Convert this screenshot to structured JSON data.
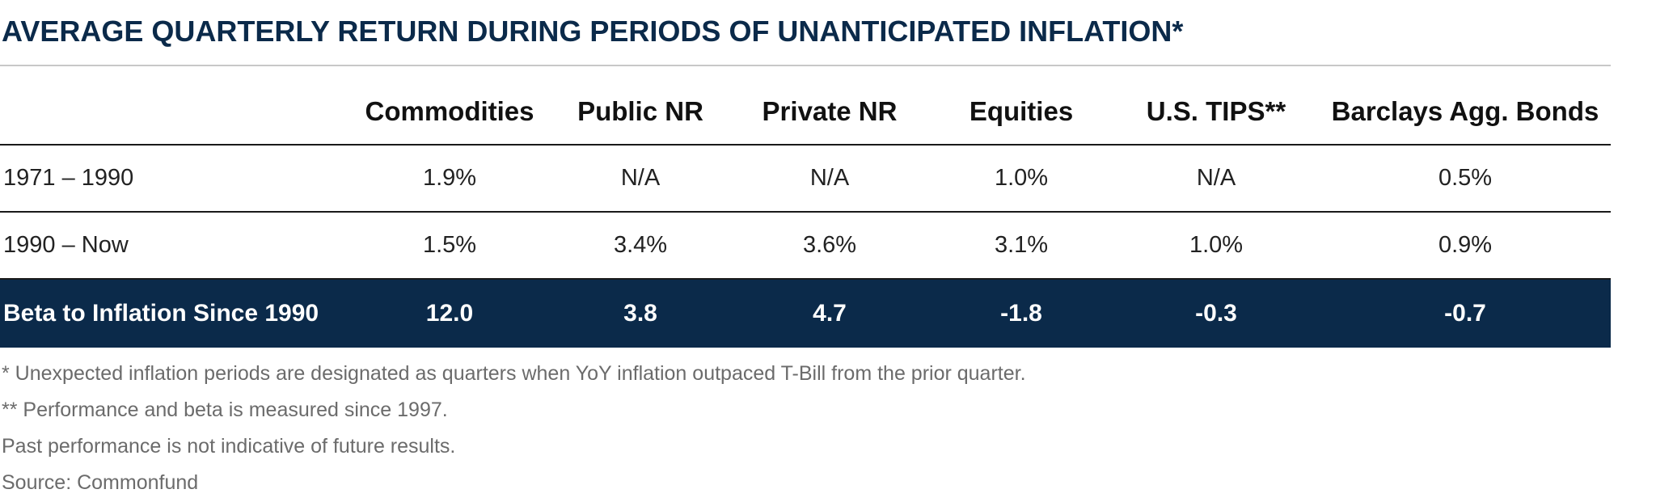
{
  "title": "AVERAGE QUARTERLY RETURN DURING PERIODS OF UNANTICIPATED INFLATION*",
  "table": {
    "columns": [
      "",
      "Commodities",
      "Public NR",
      "Private NR",
      "Equities",
      "U.S. TIPS**",
      "Barclays Agg. Bonds"
    ],
    "rows": [
      {
        "label": "1971 – 1990",
        "values": [
          "1.9%",
          "N/A",
          "N/A",
          "1.0%",
          "N/A",
          "0.5%"
        ]
      },
      {
        "label": "1990 – Now",
        "values": [
          "1.5%",
          "3.4%",
          "3.6%",
          "3.1%",
          "1.0%",
          "0.9%"
        ]
      },
      {
        "label": "Beta to Inflation Since 1990",
        "values": [
          "12.0",
          "3.8",
          "4.7",
          "-1.8",
          "-0.3",
          "-0.7"
        ]
      }
    ]
  },
  "notes": [
    "* Unexpected inflation periods are designated as quarters when YoY inflation outpaced T-Bill from the prior quarter.",
    "** Performance and beta is measured since 1997.",
    "Past performance is not indicative of future results.",
    "Source:  Commonfund"
  ],
  "colors": {
    "title": "#0b2a4a",
    "highlight_row_bg": "#0b2a4a",
    "highlight_row_text": "#ffffff",
    "notes_text": "#6b6b6b"
  }
}
